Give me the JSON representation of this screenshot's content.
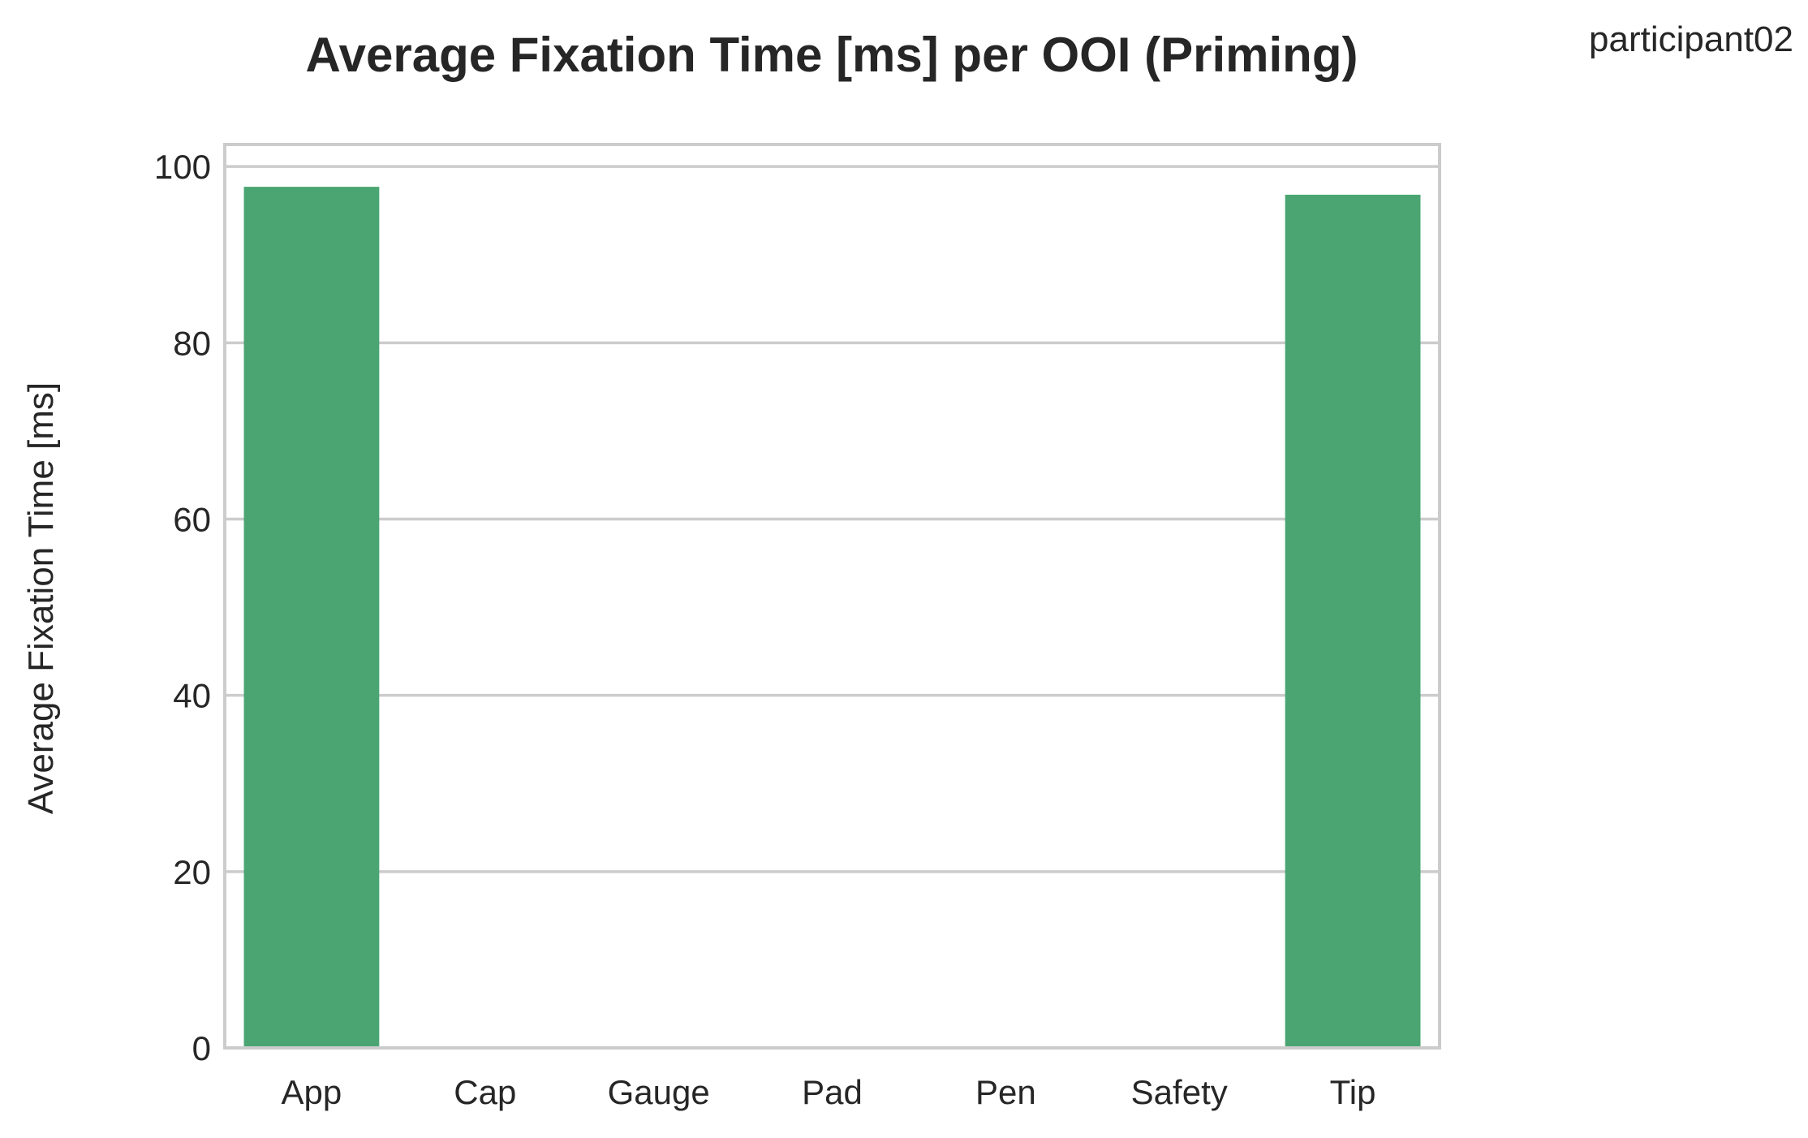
{
  "participant_label": "participant02",
  "chart_data": {
    "type": "bar",
    "title": "Average Fixation Time [ms] per OOI (Priming)",
    "xlabel": "",
    "ylabel": "Average Fixation Time [ms]",
    "categories": [
      "App",
      "Cap",
      "Gauge",
      "Pad",
      "Pen",
      "Safety",
      "Tip"
    ],
    "values": [
      97.7,
      0,
      0,
      0,
      0,
      0,
      96.8
    ],
    "ylim": [
      0,
      102.5
    ],
    "yticks": [
      0,
      20,
      40,
      60,
      80,
      100
    ],
    "grid": "horizontal",
    "bar_color": "#4ba573",
    "grid_color": "#cccccc",
    "frame_color": "#cccccc",
    "text_color": "#262626"
  }
}
